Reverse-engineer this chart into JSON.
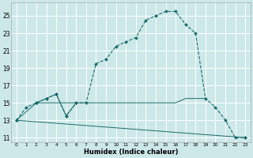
{
  "xlabel": "Humidex (Indice chaleur)",
  "bg_color": "#cde8e8",
  "grid_color": "#ffffff",
  "line_color": "#1a6b6b",
  "xlim": [
    -0.5,
    23.5
  ],
  "ylim": [
    10.5,
    26.5
  ],
  "xticks": [
    0,
    1,
    2,
    3,
    4,
    5,
    6,
    7,
    8,
    9,
    10,
    11,
    12,
    13,
    14,
    15,
    16,
    17,
    18,
    19,
    20,
    21,
    22,
    23
  ],
  "yticks": [
    11,
    13,
    15,
    17,
    19,
    21,
    23,
    25
  ],
  "main_series": [
    [
      0,
      13
    ],
    [
      1,
      14.5
    ],
    [
      2,
      15
    ],
    [
      3,
      15.5
    ],
    [
      4,
      16
    ],
    [
      5,
      13.5
    ],
    [
      6,
      15
    ],
    [
      7,
      15
    ],
    [
      8,
      19.5
    ],
    [
      9,
      20
    ],
    [
      10,
      21.5
    ],
    [
      11,
      22
    ],
    [
      12,
      22.5
    ],
    [
      13,
      24.5
    ],
    [
      14,
      25
    ],
    [
      15,
      25.5
    ],
    [
      16,
      25.5
    ],
    [
      17,
      24
    ],
    [
      18,
      23
    ],
    [
      19,
      15.5
    ],
    [
      20,
      14.5
    ],
    [
      21,
      13
    ],
    [
      22,
      11
    ],
    [
      23,
      11
    ]
  ],
  "line_diagonal": [
    [
      0,
      13
    ],
    [
      23,
      11
    ]
  ],
  "line_flat": [
    [
      2,
      15
    ],
    [
      3,
      15
    ],
    [
      4,
      15
    ],
    [
      5,
      15
    ],
    [
      6,
      15
    ],
    [
      7,
      15
    ],
    [
      8,
      15
    ],
    [
      9,
      15
    ],
    [
      10,
      15
    ],
    [
      11,
      15
    ],
    [
      12,
      15
    ],
    [
      13,
      15
    ],
    [
      14,
      15
    ],
    [
      15,
      15
    ],
    [
      16,
      15
    ],
    [
      17,
      15.5
    ],
    [
      18,
      15.5
    ],
    [
      19,
      15.5
    ]
  ],
  "line_triangle": [
    [
      2,
      15
    ],
    [
      3,
      15.5
    ],
    [
      4,
      16
    ],
    [
      5,
      13.5
    ],
    [
      6,
      15
    ]
  ],
  "line_from_start": [
    [
      0,
      13
    ],
    [
      2,
      15
    ],
    [
      3,
      15.5
    ],
    [
      4,
      16
    ],
    [
      5,
      13.5
    ],
    [
      6,
      15
    ]
  ]
}
